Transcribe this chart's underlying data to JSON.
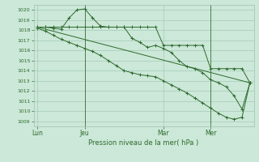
{
  "bg_color": "#cce8d8",
  "grid_color": "#9dc4b0",
  "line_color": "#2d6a2d",
  "title": "Pression niveau de la mer( hPa )",
  "ylim": [
    1008.5,
    1020.5
  ],
  "yticks": [
    1009,
    1010,
    1011,
    1012,
    1013,
    1014,
    1015,
    1016,
    1017,
    1018,
    1019,
    1020
  ],
  "xtick_labels": [
    "Lun",
    "Jeu",
    "Mar",
    "Mer"
  ],
  "xtick_positions": [
    0,
    6,
    16,
    22
  ],
  "vline_positions": [
    6,
    22
  ],
  "n_points": 28,
  "series_detailed": {
    "x": [
      0,
      1,
      2,
      3,
      4,
      5,
      6,
      7,
      8,
      9,
      10,
      11,
      12,
      13,
      14,
      15,
      16,
      17,
      18,
      19,
      20,
      21,
      22,
      23,
      24,
      25,
      26,
      27
    ],
    "y": [
      1018.3,
      1018.3,
      1018.2,
      1018.1,
      1019.2,
      1020.0,
      1020.1,
      1019.2,
      1018.4,
      1018.3,
      1018.3,
      1018.3,
      1017.2,
      1016.8,
      1016.3,
      1016.5,
      1016.2,
      1015.8,
      1015.0,
      1014.4,
      1014.2,
      1013.8,
      1013.1,
      1012.8,
      1012.4,
      1011.5,
      1010.2,
      1012.8
    ],
    "marker": true
  },
  "series_flat": {
    "x": [
      0,
      1,
      2,
      3,
      4,
      5,
      6,
      7,
      8,
      9,
      10,
      11,
      12,
      13,
      14,
      15,
      16,
      17,
      18,
      19,
      20,
      21,
      22,
      23,
      24,
      25,
      26,
      27
    ],
    "y": [
      1018.3,
      1018.3,
      1018.3,
      1018.3,
      1018.3,
      1018.3,
      1018.3,
      1018.3,
      1018.3,
      1018.3,
      1018.3,
      1018.3,
      1018.3,
      1018.3,
      1018.3,
      1018.3,
      1016.5,
      1016.5,
      1016.5,
      1016.5,
      1016.5,
      1016.5,
      1014.2,
      1014.2,
      1014.2,
      1014.2,
      1014.2,
      1012.8
    ],
    "marker": true
  },
  "series_diagonal": {
    "x": [
      0,
      27
    ],
    "y": [
      1018.3,
      1012.8
    ],
    "marker": false
  },
  "series_declining": {
    "x": [
      0,
      1,
      2,
      3,
      4,
      5,
      6,
      7,
      8,
      9,
      10,
      11,
      12,
      13,
      14,
      15,
      16,
      17,
      18,
      19,
      20,
      21,
      22,
      23,
      24,
      25,
      26,
      27
    ],
    "y": [
      1018.2,
      1017.9,
      1017.5,
      1017.1,
      1016.8,
      1016.5,
      1016.2,
      1015.9,
      1015.5,
      1015.0,
      1014.5,
      1014.0,
      1013.8,
      1013.6,
      1013.5,
      1013.4,
      1013.0,
      1012.6,
      1012.2,
      1011.8,
      1011.3,
      1010.8,
      1010.3,
      1009.8,
      1009.4,
      1009.2,
      1009.4,
      1012.8
    ],
    "marker": true
  }
}
